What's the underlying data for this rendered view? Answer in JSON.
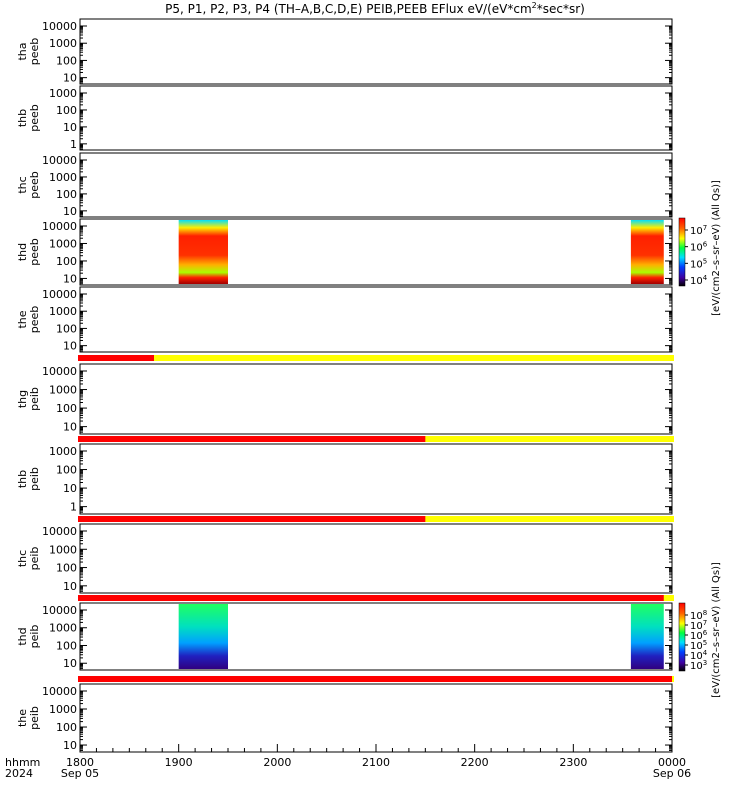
{
  "chart_data": {
    "type": "heatmap",
    "title_parts": [
      "P5, P1, P2, P3, P4 (TH–A,B,C,D,E) PEIB,PEEB EFlux eV/(eV*cm",
      "2",
      "*sec*sr)"
    ],
    "x_axis": {
      "ticks": [
        "1800",
        "1900",
        "2000",
        "2100",
        "2200",
        "2300",
        "0000"
      ],
      "left_label": [
        "hhmm",
        "2024"
      ],
      "start_date": "Sep 05",
      "end_date": "Sep 06"
    },
    "panels": [
      {
        "label": [
          "tha",
          "peeb"
        ],
        "ticks": [
          "10000",
          "1000",
          "100",
          "10"
        ]
      },
      {
        "label": [
          "thb",
          "peeb"
        ],
        "ticks": [
          "1000",
          "100",
          "10",
          "1"
        ]
      },
      {
        "label": [
          "thc",
          "peeb"
        ],
        "ticks": [
          "10000",
          "1000",
          "100",
          "10"
        ]
      },
      {
        "label": [
          "thd",
          "peeb"
        ],
        "ticks": [
          "10000",
          "1000",
          "100",
          "10"
        ],
        "spectra": [
          {
            "start": "1900",
            "end": "1930"
          },
          {
            "start": "2335",
            "end": "2355"
          }
        ]
      },
      {
        "label": [
          "the",
          "peeb"
        ],
        "ticks": [
          "10000",
          "1000",
          "100",
          "10"
        ]
      },
      {
        "label": [
          "thg",
          "peib"
        ],
        "ticks": [
          "10000",
          "1000",
          "100",
          "10"
        ]
      },
      {
        "label": [
          "thb",
          "peib"
        ],
        "ticks": [
          "1000",
          "100",
          "10",
          "1"
        ]
      },
      {
        "label": [
          "thc",
          "peib"
        ],
        "ticks": [
          "10000",
          "1000",
          "100",
          "10"
        ]
      },
      {
        "label": [
          "thd",
          "peib"
        ],
        "ticks": [
          "10000",
          "1000",
          "100",
          "10"
        ],
        "spectra": [
          {
            "start": "1900",
            "end": "1930"
          },
          {
            "start": "2335",
            "end": "2355"
          }
        ]
      },
      {
        "label": [
          "the",
          "peib"
        ],
        "ticks": [
          "10000",
          "1000",
          "100",
          "10"
        ]
      }
    ],
    "status_bars": [
      {
        "red_until": "1845"
      },
      {
        "red_until": "2130"
      },
      {
        "red_until": "2130"
      },
      {
        "red_until": "2355"
      },
      {
        "red_until": "0000"
      }
    ],
    "colorbars": [
      {
        "label": "[eV/(cm2–s–sr–eV) (All Qs)]",
        "ticks": [
          "10",
          "10",
          "10",
          "10"
        ],
        "exponents": [
          "7",
          "6",
          "5",
          "4"
        ]
      },
      {
        "label": "[eV/(cm2–s–sr–eV) (All Qs)]",
        "ticks": [
          "10",
          "10",
          "10",
          "10",
          "10",
          "10"
        ],
        "exponents": [
          "8",
          "7",
          "6",
          "5",
          "4",
          "3"
        ]
      }
    ],
    "colors": {
      "status_red": "#ff0000",
      "status_yellow": "#ffff00"
    }
  }
}
